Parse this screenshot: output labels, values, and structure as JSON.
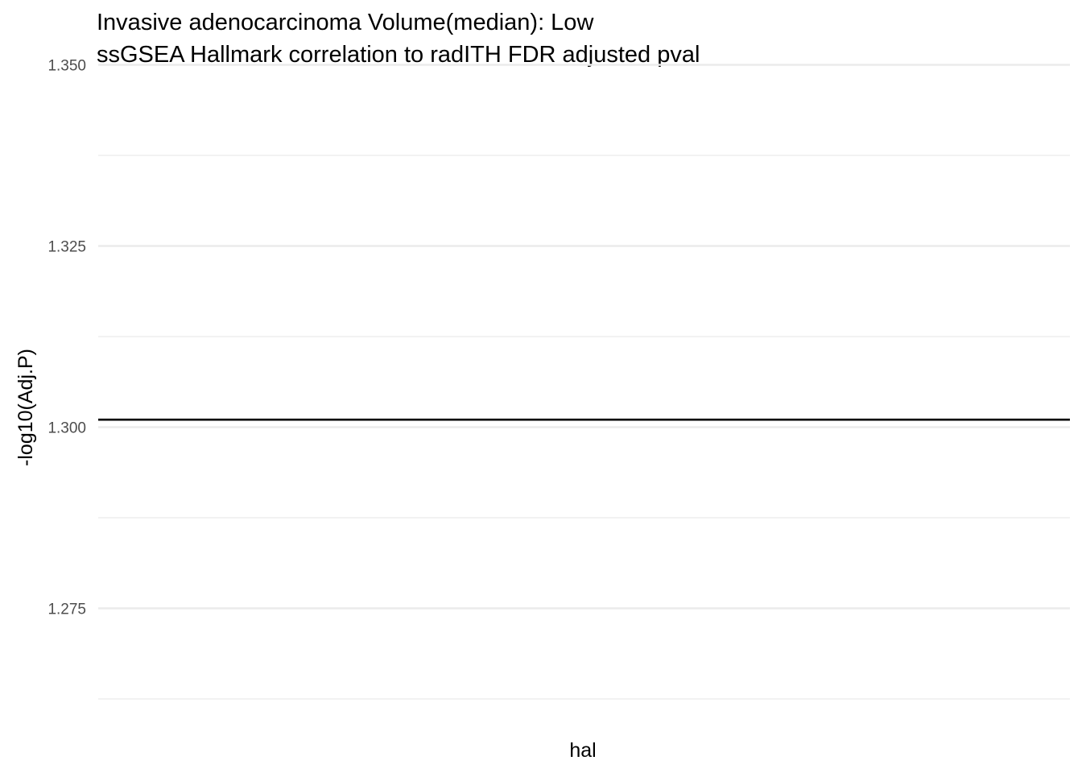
{
  "chart_data": {
    "type": "line",
    "title": "Invasive adenocarcinoma Volume(median): Low",
    "subtitle": "ssGSEA Hallmark correlation to radITH FDR adjusted pval",
    "xlabel": "hal",
    "ylabel": "-log10(Adj.P)",
    "ylim": [
      1.2625,
      1.3525
    ],
    "y_ticks": [
      1.275,
      1.3,
      1.325,
      1.35
    ],
    "y_tick_labels": [
      "1.275",
      "1.300",
      "1.325",
      "1.350"
    ],
    "y_minor_ticks": [
      1.2625,
      1.2875,
      1.3125,
      1.3375
    ],
    "grid": true,
    "reference_line": {
      "y": 1.30103,
      "color": "#000000"
    },
    "series": [],
    "colors": {
      "grid": "#ebebeb",
      "tick_text": "#4d4d4d",
      "text": "#000000"
    }
  }
}
